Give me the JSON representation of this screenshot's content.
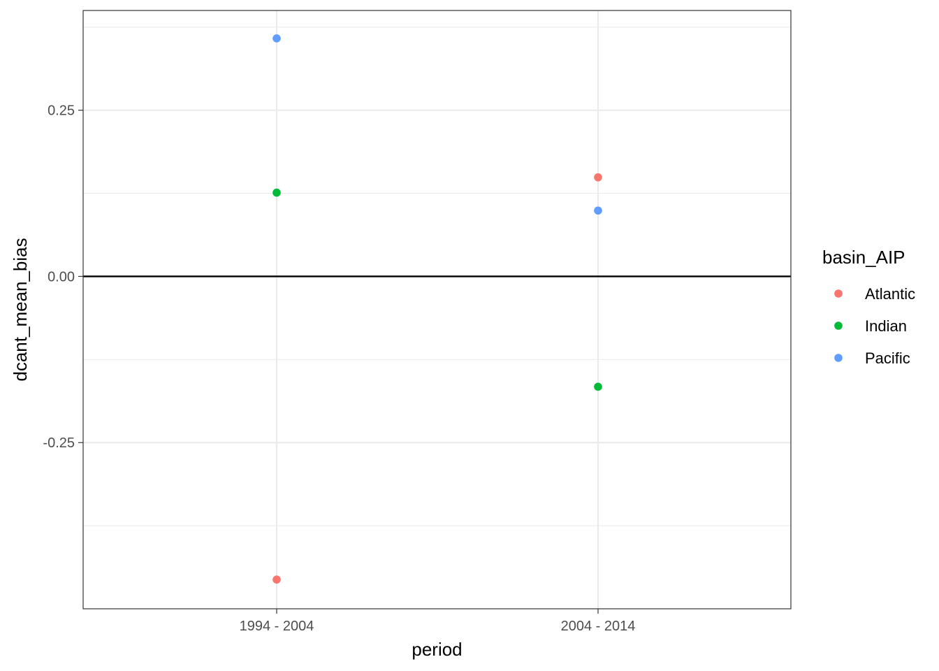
{
  "chart_data": {
    "type": "scatter",
    "x_axis_type": "categorical",
    "categories": [
      "1994 - 2004",
      "2004 - 2014"
    ],
    "xlabel": "period",
    "ylabel": "dcant_mean_bias",
    "ylim": [
      -0.5,
      0.4
    ],
    "y_ticks": [
      -0.25,
      0.0,
      0.25
    ],
    "y_tick_labels": [
      "-0.25",
      "0.00",
      "0.25"
    ],
    "reference_line_y": 0.0,
    "grid": true,
    "theme": "bw",
    "legend": {
      "title": "basin_AIP",
      "placement": "right"
    },
    "series": [
      {
        "name": "Atlantic",
        "color": "#F8766D",
        "values": [
          -0.456,
          0.149
        ]
      },
      {
        "name": "Indian",
        "color": "#00BA38",
        "values": [
          0.126,
          -0.166
        ]
      },
      {
        "name": "Pacific",
        "color": "#619CFF",
        "values": [
          0.358,
          0.099
        ]
      }
    ]
  }
}
